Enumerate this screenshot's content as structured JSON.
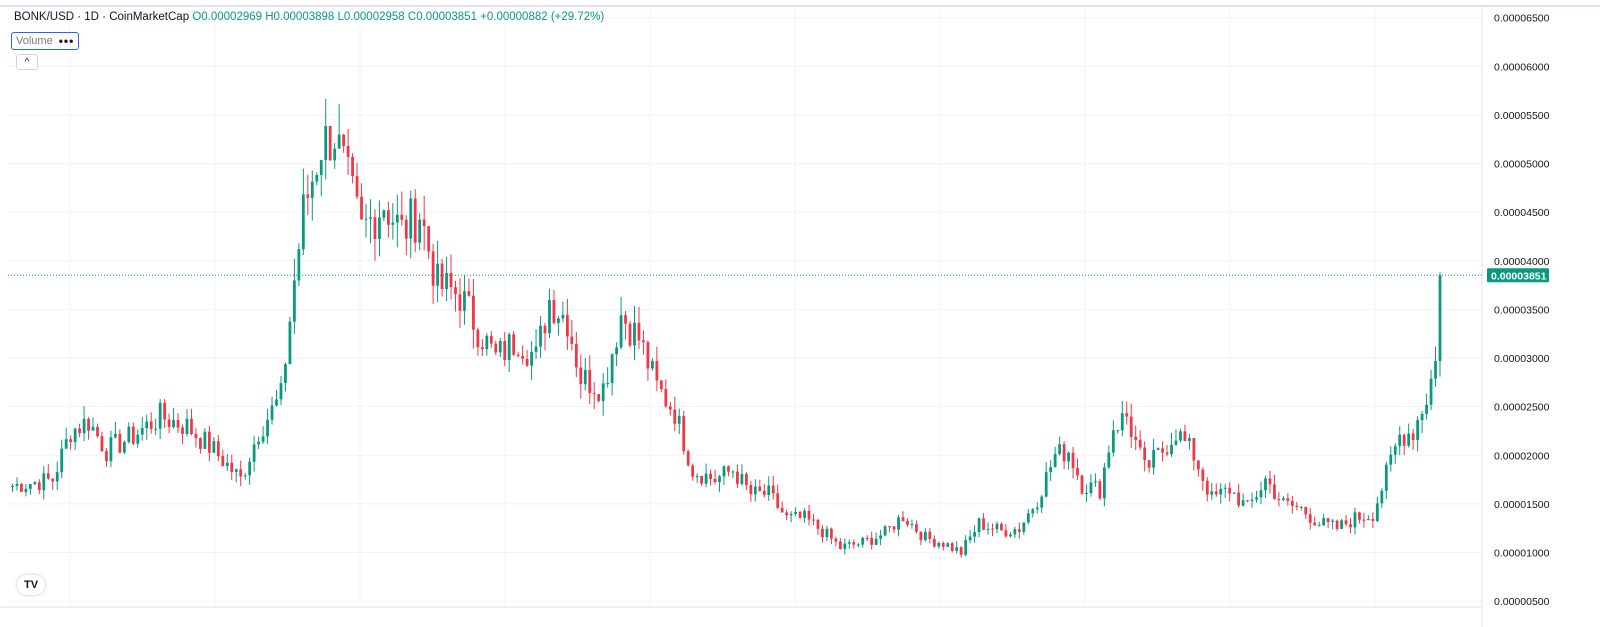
{
  "legend": {
    "symbol": "BONK/USD · 1D · CoinMarketCap",
    "open_label": "O",
    "open": "0.00002969",
    "high_label": "H",
    "high": "0.00003898",
    "low_label": "L",
    "low": "0.00002958",
    "close_label": "C",
    "close": "0.00003851",
    "change": "+0.00000882 (+29.72%)"
  },
  "volume_chip": {
    "label": "Volume",
    "menu": "•••"
  },
  "collapse_button": {
    "label": "^"
  },
  "logo": {
    "text": "TV"
  },
  "colors": {
    "up": "#089981",
    "down": "#f23645",
    "grid": "#f0f3fa",
    "axis_text": "#131722",
    "price_line": "#089981"
  },
  "chart_data": {
    "type": "candlestick",
    "title": "BONK/USD · 1D · CoinMarketCap",
    "ylim": [
      4.5e-06,
      6.6e-05
    ],
    "y_ticks": [
      "0.00000500",
      "0.00001000",
      "0.00001500",
      "0.00002000",
      "0.00002500",
      "0.00003000",
      "0.00003500",
      "0.00004000",
      "0.00004500",
      "0.00005000",
      "0.00005500",
      "0.00006000",
      "0.00006500"
    ],
    "last_price": "0.00003851",
    "grid": true,
    "anchors": [
      [
        0,
        1.68e-05
      ],
      [
        10,
        1.75e-05
      ],
      [
        14,
        2.25e-05
      ],
      [
        18,
        2.35e-05
      ],
      [
        22,
        2.05e-05
      ],
      [
        28,
        2.2e-05
      ],
      [
        34,
        2.4e-05
      ],
      [
        40,
        2.3e-05
      ],
      [
        46,
        2.05e-05
      ],
      [
        52,
        1.75e-05
      ],
      [
        56,
        2.25e-05
      ],
      [
        61,
        2.6e-05
      ],
      [
        64,
        3.8e-05
      ],
      [
        66,
        4.5e-05
      ],
      [
        70,
        5.2e-05
      ],
      [
        73,
        5.3e-05
      ],
      [
        76,
        4.8e-05
      ],
      [
        79,
        4.3e-05
      ],
      [
        84,
        4.6e-05
      ],
      [
        88,
        4.3e-05
      ],
      [
        92,
        4.5e-05
      ],
      [
        96,
        3.75e-05
      ],
      [
        101,
        3.65e-05
      ],
      [
        105,
        3.3e-05
      ],
      [
        109,
        3e-05
      ],
      [
        114,
        3.2e-05
      ],
      [
        118,
        3e-05
      ],
      [
        121,
        3.6e-05
      ],
      [
        125,
        3.4e-05
      ],
      [
        128,
        2.8e-05
      ],
      [
        133,
        2.7e-05
      ],
      [
        137,
        3.45e-05
      ],
      [
        141,
        3.2e-05
      ],
      [
        145,
        2.7e-05
      ],
      [
        149,
        2.45e-05
      ],
      [
        153,
        1.85e-05
      ],
      [
        158,
        1.75e-05
      ],
      [
        162,
        1.85e-05
      ],
      [
        166,
        1.6e-05
      ],
      [
        170,
        1.6e-05
      ],
      [
        174,
        1.35e-05
      ],
      [
        178,
        1.35e-05
      ],
      [
        182,
        1.22e-05
      ],
      [
        186,
        1.05e-05
      ],
      [
        191,
        1.1e-05
      ],
      [
        196,
        1.2e-05
      ],
      [
        200,
        1.38e-05
      ],
      [
        205,
        1.15e-05
      ],
      [
        209,
        1.1e-05
      ],
      [
        213,
        1e-05
      ],
      [
        217,
        1.3e-05
      ],
      [
        222,
        1.22e-05
      ],
      [
        226,
        1.25e-05
      ],
      [
        230,
        1.55e-05
      ],
      [
        234,
        2e-05
      ],
      [
        237,
        2.05e-05
      ],
      [
        240,
        1.7e-05
      ],
      [
        244,
        1.65e-05
      ],
      [
        247,
        2.3e-05
      ],
      [
        250,
        2.4e-05
      ],
      [
        254,
        1.85e-05
      ],
      [
        258,
        2.05e-05
      ],
      [
        261,
        2.25e-05
      ],
      [
        265,
        2e-05
      ],
      [
        269,
        1.55e-05
      ],
      [
        273,
        1.65e-05
      ],
      [
        277,
        1.45e-05
      ],
      [
        281,
        1.75e-05
      ],
      [
        285,
        1.5e-05
      ],
      [
        289,
        1.45e-05
      ],
      [
        293,
        1.3e-05
      ],
      [
        297,
        1.25e-05
      ],
      [
        301,
        1.35e-05
      ],
      [
        305,
        1.4e-05
      ],
      [
        308,
        1.8e-05
      ],
      [
        311,
        2.2e-05
      ],
      [
        314,
        2.25e-05
      ],
      [
        317,
        2.6e-05
      ],
      [
        319,
        2.96e-05
      ],
      [
        320,
        3.85e-05
      ]
    ]
  }
}
